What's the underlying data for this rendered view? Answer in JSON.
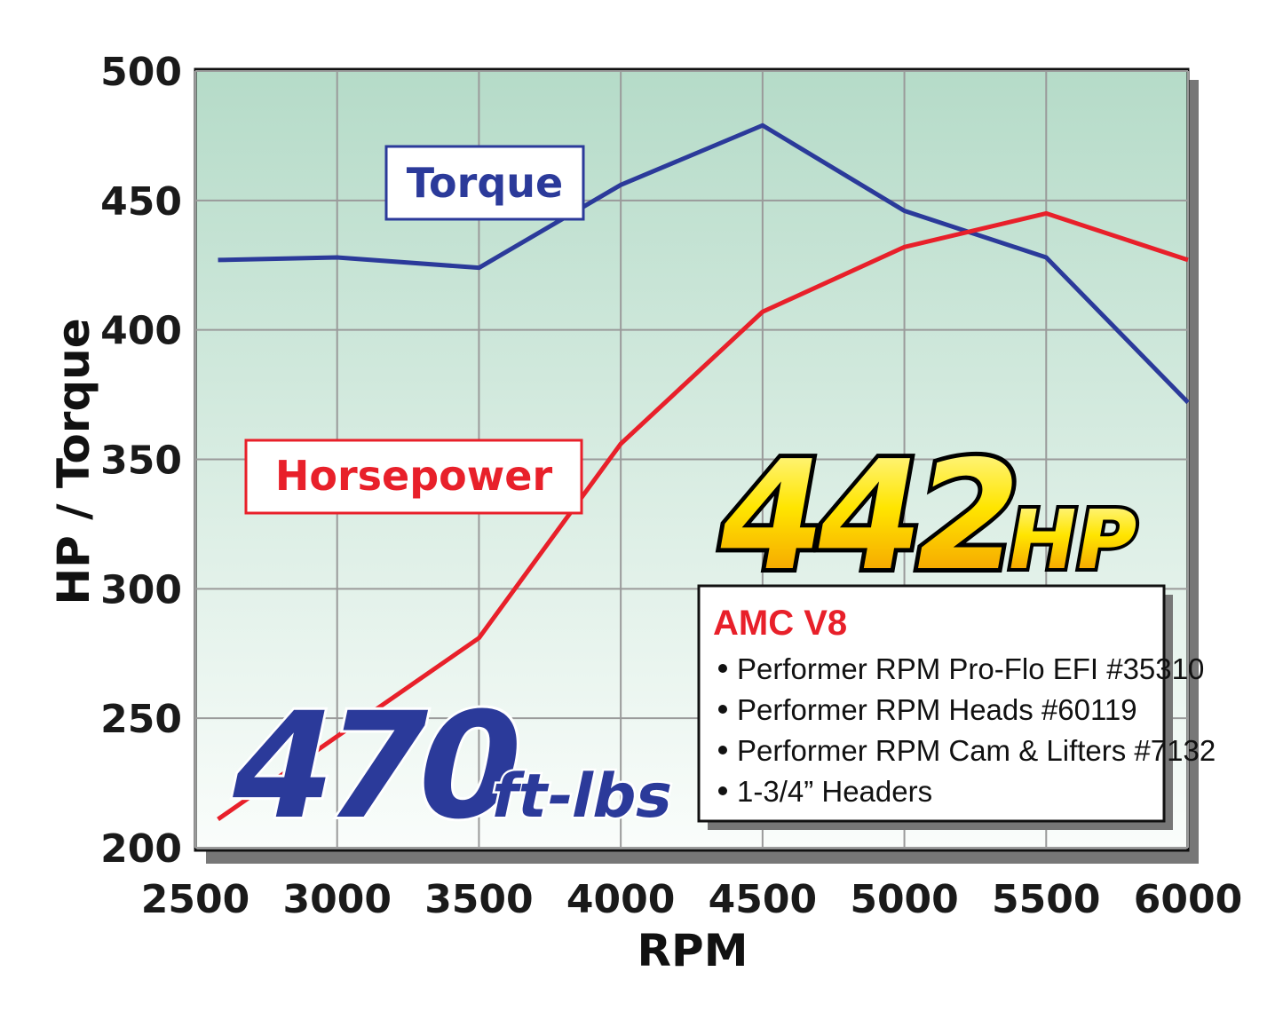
{
  "chart_data": {
    "type": "line",
    "x": [
      2580,
      3000,
      3500,
      4000,
      4500,
      5000,
      5500,
      6000
    ],
    "series": [
      {
        "name": "Torque",
        "color": "#2b3a9a",
        "values": [
          427,
          428,
          424,
          456,
          479,
          446,
          428,
          372
        ]
      },
      {
        "name": "Horsepower",
        "color": "#e8202a",
        "values": [
          211,
          243,
          281,
          356,
          407,
          432,
          445,
          427
        ]
      }
    ],
    "xlim": [
      2500,
      6000
    ],
    "ylim": [
      200,
      500
    ],
    "xticks": [
      2500,
      3000,
      3500,
      4000,
      4500,
      5000,
      5500,
      6000
    ],
    "yticks": [
      200,
      250,
      300,
      350,
      400,
      450,
      500
    ],
    "grid": true,
    "xlabel": "RPM",
    "ylabel": "HP / Torque",
    "hp_badge": {
      "number": "442",
      "unit": "HP"
    },
    "torque_badge": {
      "number": "470",
      "unit": "ft-lbs"
    },
    "info": {
      "title": "AMC V8",
      "items": [
        "Performer RPM Pro-Flo EFI #35310",
        "Performer RPM Heads #60119",
        "Performer RPM Cam & Lifters #7132",
        "1-3/4” Headers"
      ]
    }
  }
}
